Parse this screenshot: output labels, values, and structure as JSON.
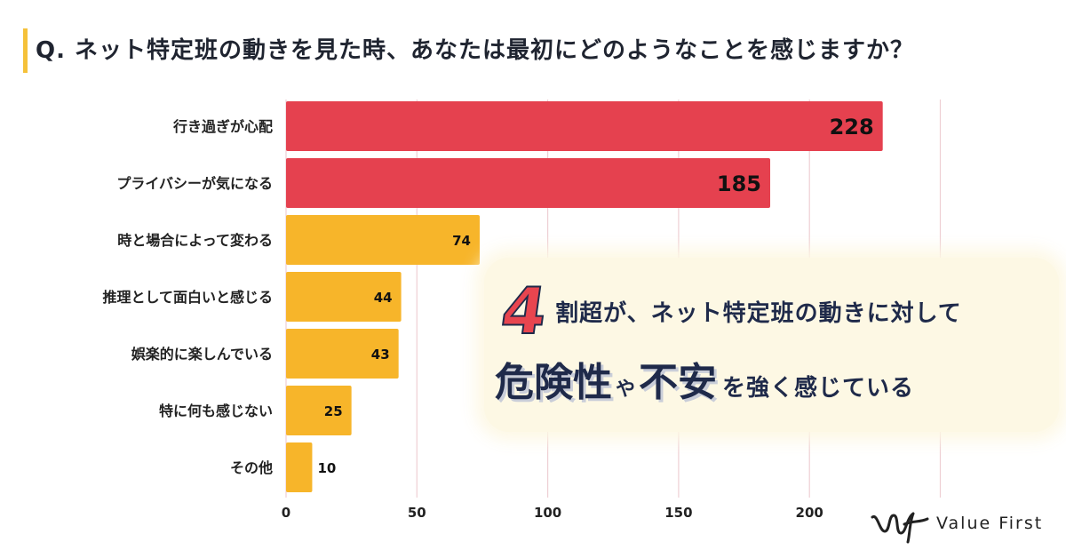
{
  "question": "Q. ネット特定班の動きを見た時、あなたは最初にどのようなことを感じますか？",
  "colors": {
    "high": "#e5414f",
    "low": "#f7b52a",
    "accent": "#f5c13a",
    "navy": "#1f2a4a",
    "grid": "#eecfd4"
  },
  "chart_data": {
    "type": "bar",
    "orientation": "horizontal",
    "categories": [
      "行き過ぎが心配",
      "プライバシーが気になる",
      "時と場合によって変わる",
      "推理として面白いと感じる",
      "娯楽的に楽しんでいる",
      "特に何も感じない",
      "その他"
    ],
    "values": [
      228,
      185,
      74,
      44,
      43,
      25,
      10
    ],
    "bar_colors": [
      "#e5414f",
      "#e5414f",
      "#f7b52a",
      "#f7b52a",
      "#f7b52a",
      "#f7b52a",
      "#f7b52a"
    ],
    "xlim": [
      0,
      250
    ],
    "xticks": [
      0,
      50,
      100,
      150,
      200
    ],
    "grid": true
  },
  "callout": {
    "number": "4",
    "line1": "割超が、ネット特定班の動きに対して",
    "word1": "危険性",
    "particle": "や",
    "word2": "不安",
    "rest": "を強く感じている"
  },
  "logo": {
    "text": "Value First",
    "icon": "value-first-logo-icon"
  }
}
